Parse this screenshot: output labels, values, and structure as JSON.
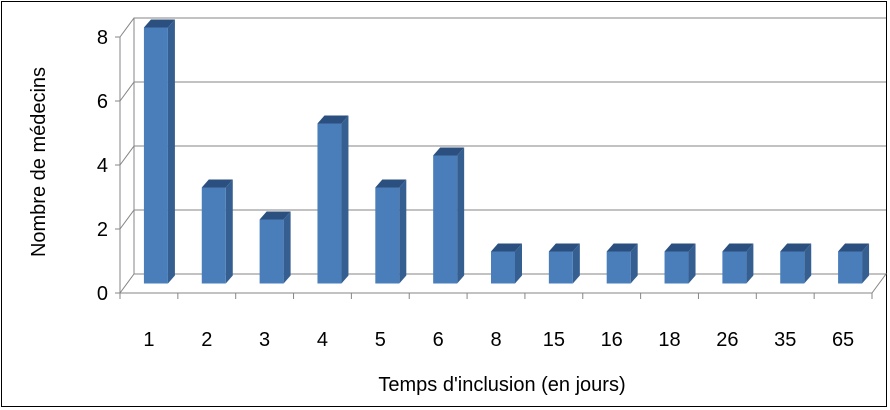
{
  "chart_data": {
    "type": "bar",
    "style": "3d-column",
    "title": "",
    "xlabel": "Temps d'inclusion (en jours)",
    "ylabel": "Nombre de médecins",
    "categories": [
      "1",
      "2",
      "3",
      "4",
      "5",
      "6",
      "8",
      "15",
      "16",
      "18",
      "26",
      "35",
      "65"
    ],
    "values": [
      8,
      3,
      2,
      5,
      3,
      4,
      1,
      1,
      1,
      1,
      1,
      1,
      1
    ],
    "ylim": [
      0,
      8
    ],
    "yticks": [
      "0",
      "2",
      "4",
      "6",
      "8"
    ],
    "grid": true,
    "legend": "none",
    "colors": {
      "bar_front": "#4a7ebb",
      "bar_top": "#2b4f7e",
      "bar_side": "#365f91",
      "gridline": "#868686",
      "axis": "#868686"
    }
  }
}
